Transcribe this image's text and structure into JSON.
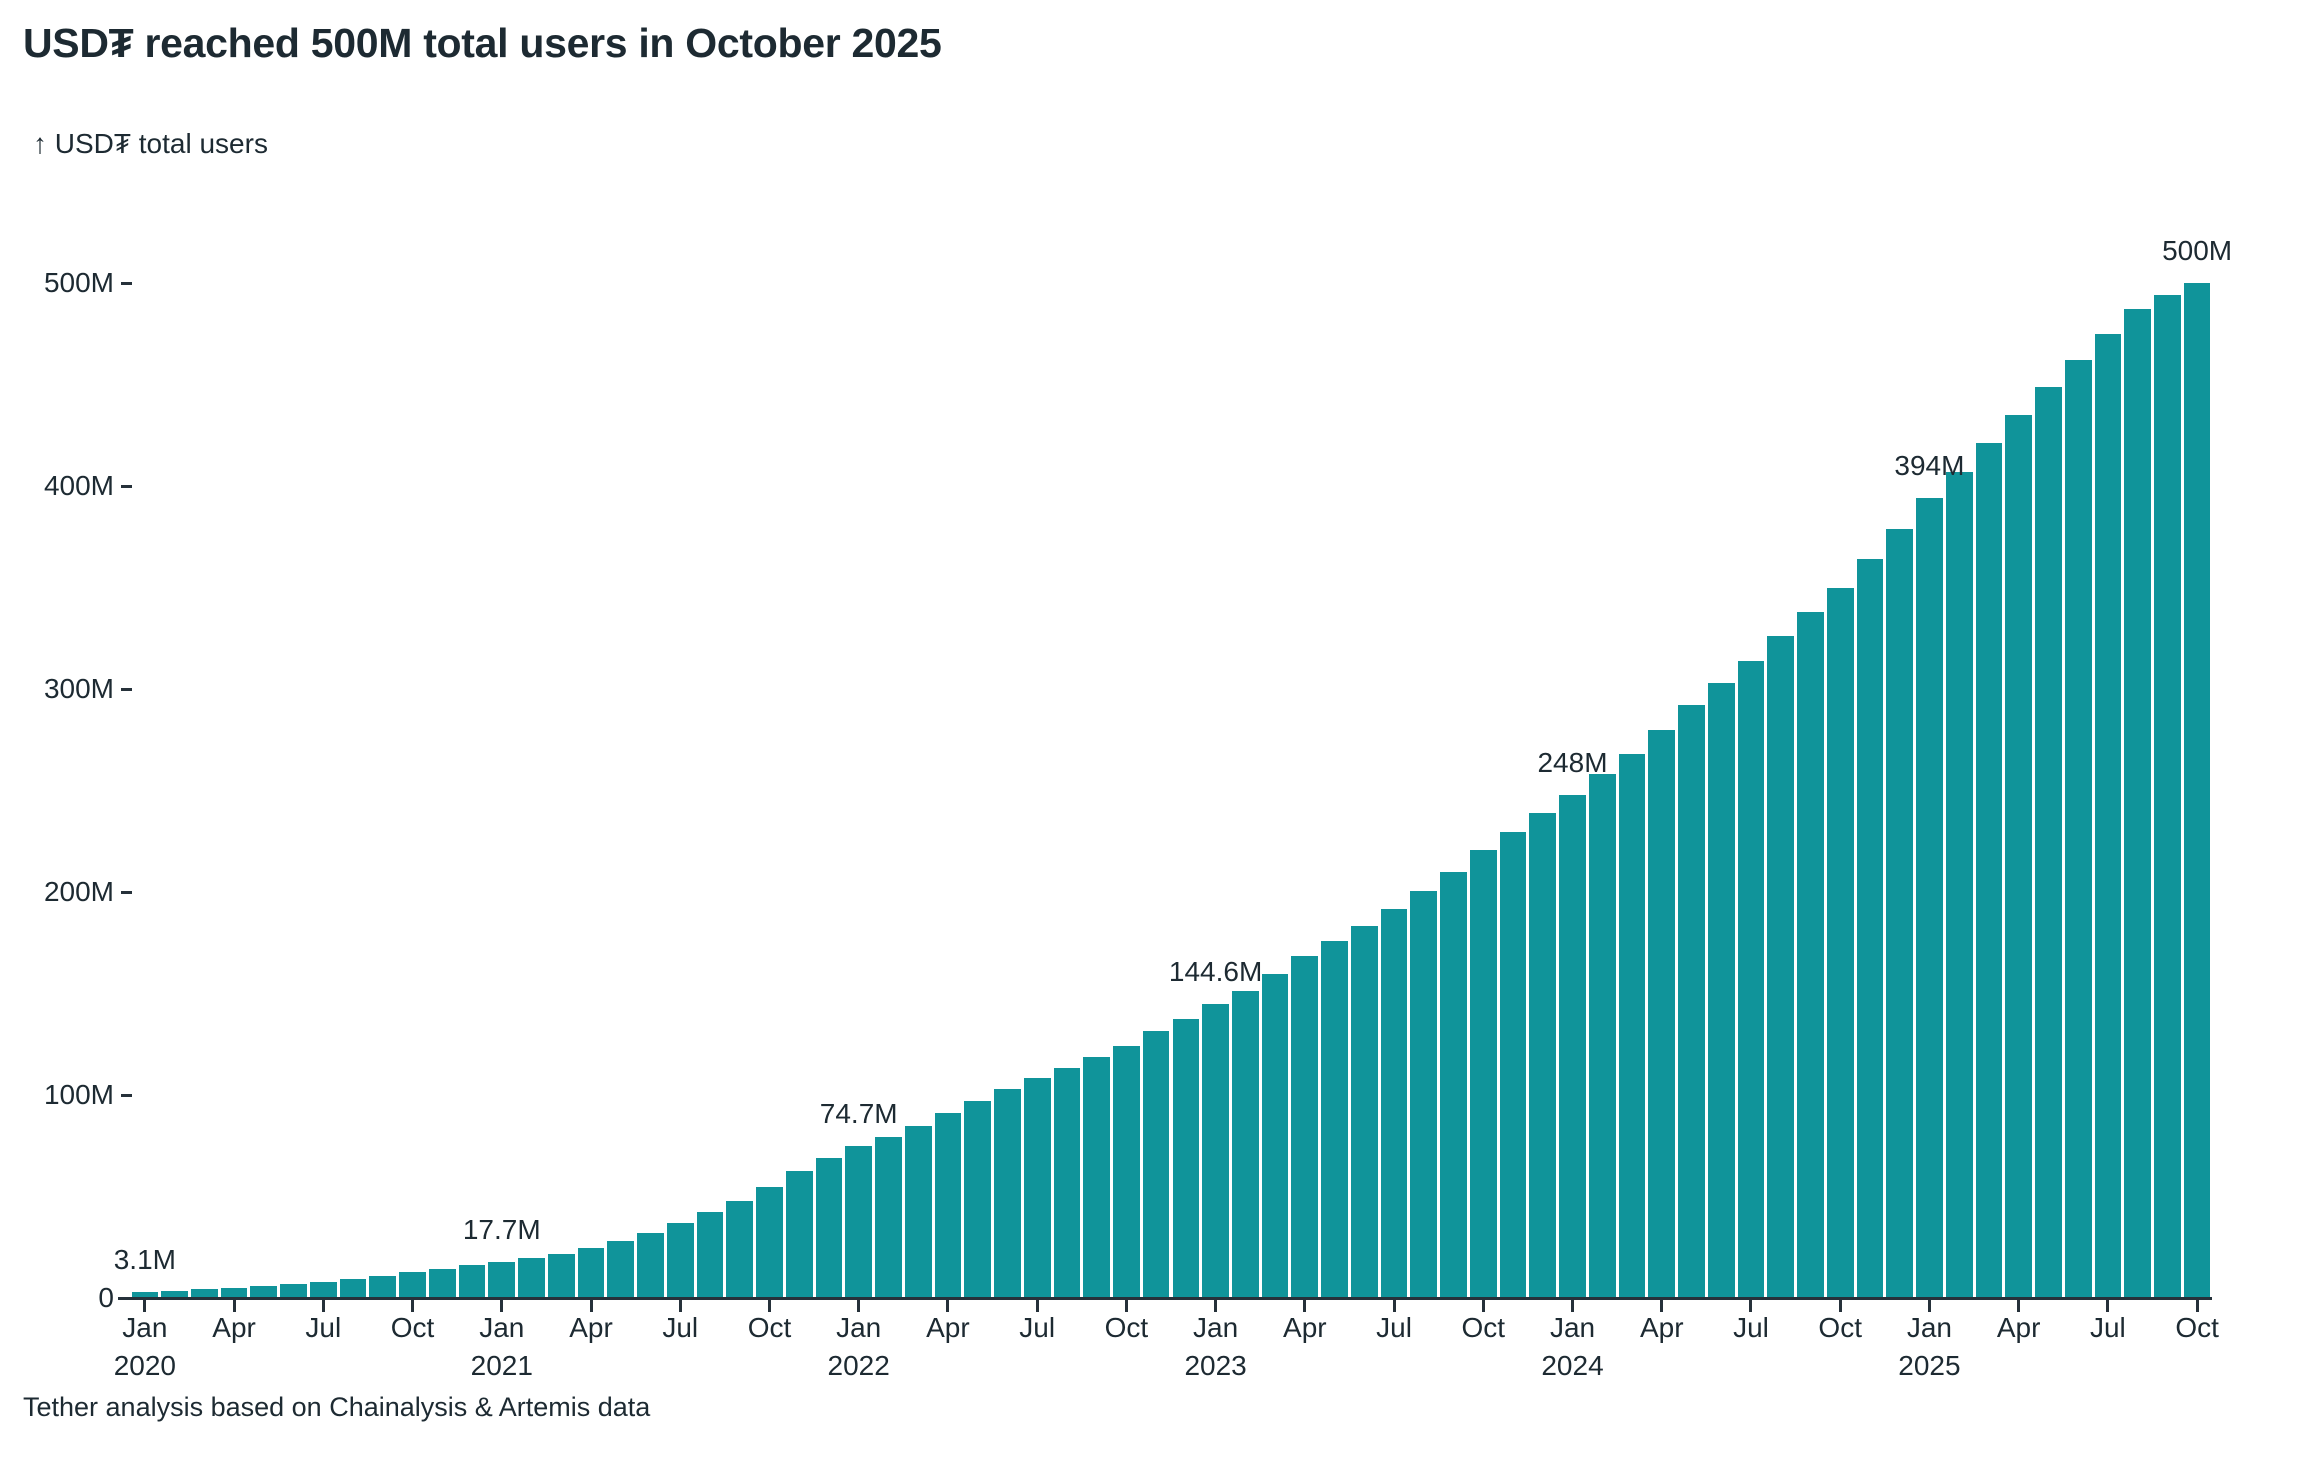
{
  "page": {
    "background": "#ffffff"
  },
  "header": {
    "title": "USD₮ reached 500M total users in October 2025"
  },
  "footer": {
    "source": "Tether analysis based on Chainalysis & Artemis data"
  },
  "chart_data": {
    "type": "bar",
    "title": "USD₮ reached 500M total users in October 2025",
    "y_axis_label": "↑ USD₮ total users",
    "footer_note": "Tether analysis based on Chainalysis & Artemis data",
    "period": {
      "start": "2020-01",
      "end": "2025-10",
      "freq": "monthly"
    },
    "unit": "millions of users",
    "ylim": [
      0,
      500
    ],
    "grid": "off",
    "bar_color": "#10949a",
    "text_color": "#1d2a32",
    "axis_color": "#26313a",
    "background_color": "#ffffff",
    "y_ticks": [
      {
        "v": 0,
        "label": "0"
      },
      {
        "v": 100,
        "label": "100M"
      },
      {
        "v": 200,
        "label": "200M"
      },
      {
        "v": 300,
        "label": "300M"
      },
      {
        "v": 400,
        "label": "400M"
      },
      {
        "v": 500,
        "label": "500M"
      }
    ],
    "x_ticks": [
      {
        "i": 0,
        "month": "Jan",
        "year": "2020"
      },
      {
        "i": 3,
        "month": "Apr"
      },
      {
        "i": 6,
        "month": "Jul"
      },
      {
        "i": 9,
        "month": "Oct"
      },
      {
        "i": 12,
        "month": "Jan",
        "year": "2021"
      },
      {
        "i": 15,
        "month": "Apr"
      },
      {
        "i": 18,
        "month": "Jul"
      },
      {
        "i": 21,
        "month": "Oct"
      },
      {
        "i": 24,
        "month": "Jan",
        "year": "2022"
      },
      {
        "i": 27,
        "month": "Apr"
      },
      {
        "i": 30,
        "month": "Jul"
      },
      {
        "i": 33,
        "month": "Oct"
      },
      {
        "i": 36,
        "month": "Jan",
        "year": "2023"
      },
      {
        "i": 39,
        "month": "Apr"
      },
      {
        "i": 42,
        "month": "Jul"
      },
      {
        "i": 45,
        "month": "Oct"
      },
      {
        "i": 48,
        "month": "Jan",
        "year": "2024"
      },
      {
        "i": 51,
        "month": "Apr"
      },
      {
        "i": 54,
        "month": "Jul"
      },
      {
        "i": 57,
        "month": "Oct"
      },
      {
        "i": 60,
        "month": "Jan",
        "year": "2025"
      },
      {
        "i": 63,
        "month": "Apr"
      },
      {
        "i": 66,
        "month": "Jul"
      },
      {
        "i": 69,
        "month": "Oct"
      }
    ],
    "annotations": [
      {
        "i": 0,
        "label": "3.1M"
      },
      {
        "i": 12,
        "label": "17.7M"
      },
      {
        "i": 24,
        "label": "74.7M"
      },
      {
        "i": 36,
        "label": "144.6M"
      },
      {
        "i": 48,
        "label": "248M"
      },
      {
        "i": 60,
        "label": "394M"
      },
      {
        "i": 69,
        "label": "500M"
      }
    ],
    "values": [
      3.1,
      3.7,
      4.4,
      5.1,
      5.9,
      6.9,
      8.0,
      9.4,
      10.9,
      12.6,
      14.4,
      16.1,
      17.7,
      19.6,
      21.6,
      24.5,
      28.0,
      32.0,
      37.0,
      42.5,
      48.0,
      54.8,
      62.5,
      68.8,
      74.7,
      79.5,
      84.7,
      91.0,
      97.0,
      103.0,
      108.5,
      113.5,
      118.5,
      124.3,
      131.7,
      137.4,
      144.6,
      151.3,
      159.5,
      168.5,
      176.0,
      183.5,
      191.5,
      200.5,
      210.0,
      220.7,
      229.5,
      239.0,
      248.0,
      258.0,
      268.0,
      280.0,
      292.0,
      303.0,
      314.0,
      326.0,
      338.0,
      350.0,
      364.0,
      379.0,
      394.0,
      407.0,
      421.0,
      435.0,
      449.0,
      462.0,
      475.0,
      487.0,
      494.0,
      500.0
    ]
  }
}
